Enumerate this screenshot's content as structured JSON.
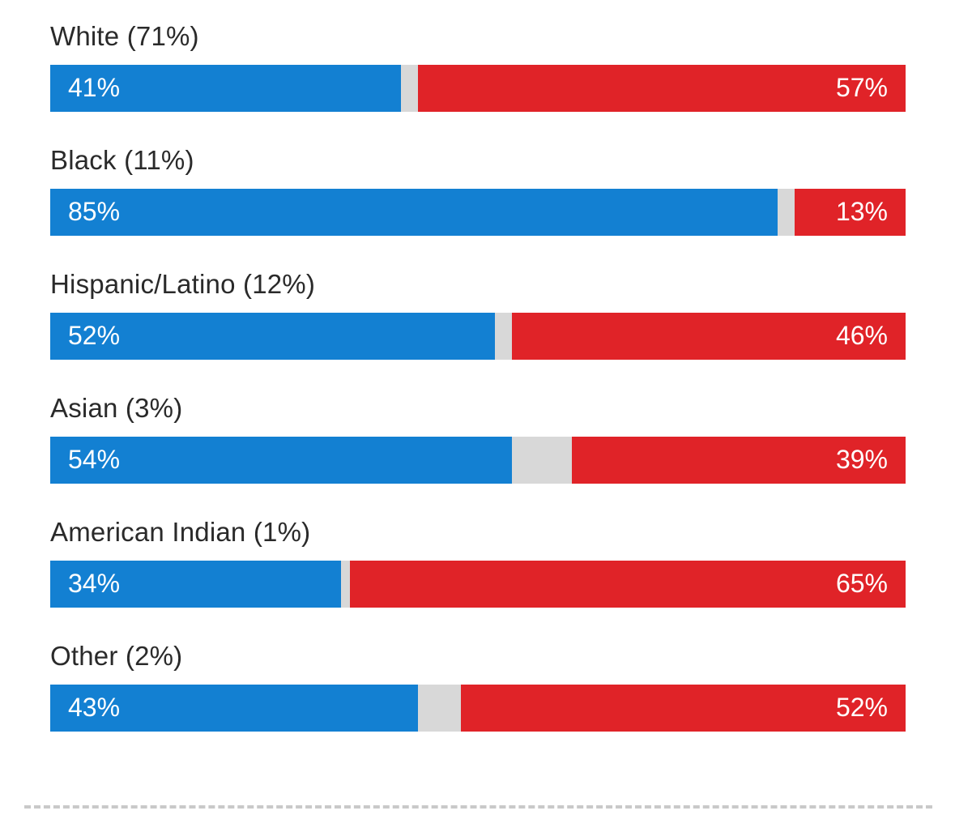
{
  "chart_data": {
    "type": "bar",
    "subtype": "horizontal-stacked-divergent",
    "title": "",
    "xlabel": "",
    "ylabel": "",
    "xlim": [
      0,
      100
    ],
    "grid": false,
    "legend_position": "none",
    "categories": [
      "White (71%)",
      "Black (11%)",
      "Hispanic/Latino (12%)",
      "Asian (3%)",
      "American Indian (1%)",
      "Other (2%)"
    ],
    "series": [
      {
        "name": "democrat-share",
        "color": "#1380d2",
        "values": [
          41,
          85,
          52,
          54,
          34,
          43
        ]
      },
      {
        "name": "republican-share",
        "color": "#e02328",
        "values": [
          57,
          13,
          46,
          39,
          65,
          52
        ]
      }
    ],
    "value_labels": {
      "democrat": [
        "41%",
        "85%",
        "52%",
        "54%",
        "34%",
        "43%"
      ],
      "republican": [
        "57%",
        "13%",
        "46%",
        "39%",
        "65%",
        "52%"
      ]
    },
    "gap_color": "#d8d8d8"
  },
  "colors": {
    "democrat_blue": "#1380d2",
    "republican_red": "#e02328",
    "gap_gray": "#d8d8d8",
    "label_text": "#2a2a2a",
    "bar_text": "#ffffff"
  }
}
